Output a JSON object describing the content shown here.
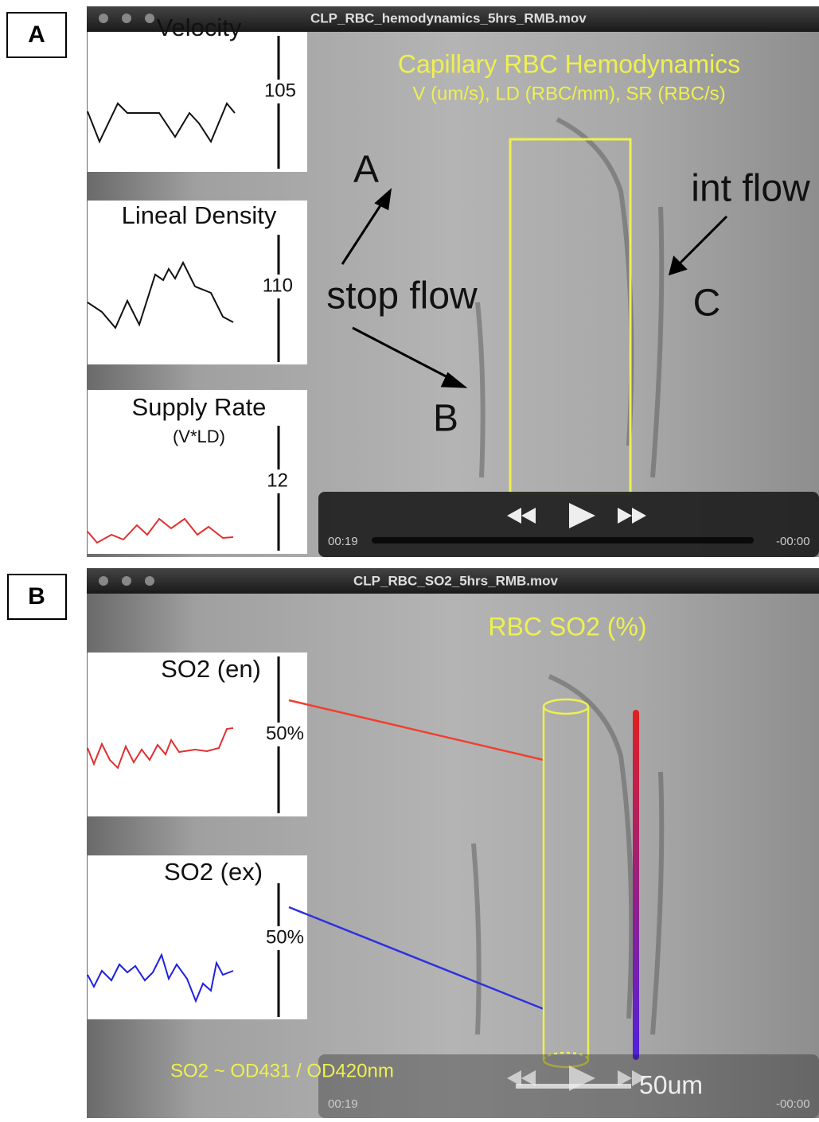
{
  "panels": [
    {
      "label": "A",
      "window_title": "CLP_RBC_hemodynamics_5hrs_RMB.mov",
      "overlay_title": "Capillary RBC Hemodynamics",
      "overlay_subtitle": "V (um/s), LD (RBC/mm), SR (RBC/s)",
      "annotations": [
        "A",
        "stop flow",
        "B",
        "int flow",
        "C"
      ],
      "plots": [
        {
          "title": "Velocity",
          "scale": "105"
        },
        {
          "title": "Lineal Density",
          "scale": "110"
        },
        {
          "title": "Supply Rate",
          "subtitle": "(V*LD)",
          "scale": "12"
        }
      ],
      "elapsed": "00:19",
      "remaining": "-00:00"
    },
    {
      "label": "B",
      "window_title": "CLP_RBC_SO2_5hrs_RMB.mov",
      "overlay_title": "RBC SO2 (%)",
      "annotations": [
        "SO2 ~ OD431 / OD420nm",
        "50um"
      ],
      "plots": [
        {
          "title": "SO2 (en)",
          "scale": "50%"
        },
        {
          "title": "SO2 (ex)",
          "scale": "50%"
        }
      ],
      "elapsed": "00:19",
      "remaining": "-00:00"
    }
  ]
}
